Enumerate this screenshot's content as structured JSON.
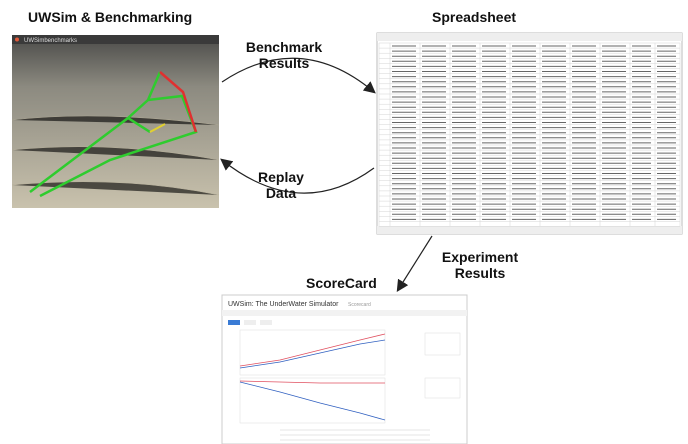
{
  "simulator": {
    "title": "UWSim & Benchmarking",
    "window_title": "UWSimbenchmarks"
  },
  "spreadsheet": {
    "title": "Spreadsheet"
  },
  "scorecard": {
    "title": "ScoreCard",
    "page_title": "UWSim: The UnderWater Simulator",
    "page_subtitle": "Scorecard"
  },
  "arrows": [
    {
      "lines": [
        "Benchmark",
        "Results"
      ]
    },
    {
      "lines": [
        "Replay",
        "Data"
      ]
    },
    {
      "lines": [
        "Experiment",
        "Results"
      ]
    }
  ]
}
